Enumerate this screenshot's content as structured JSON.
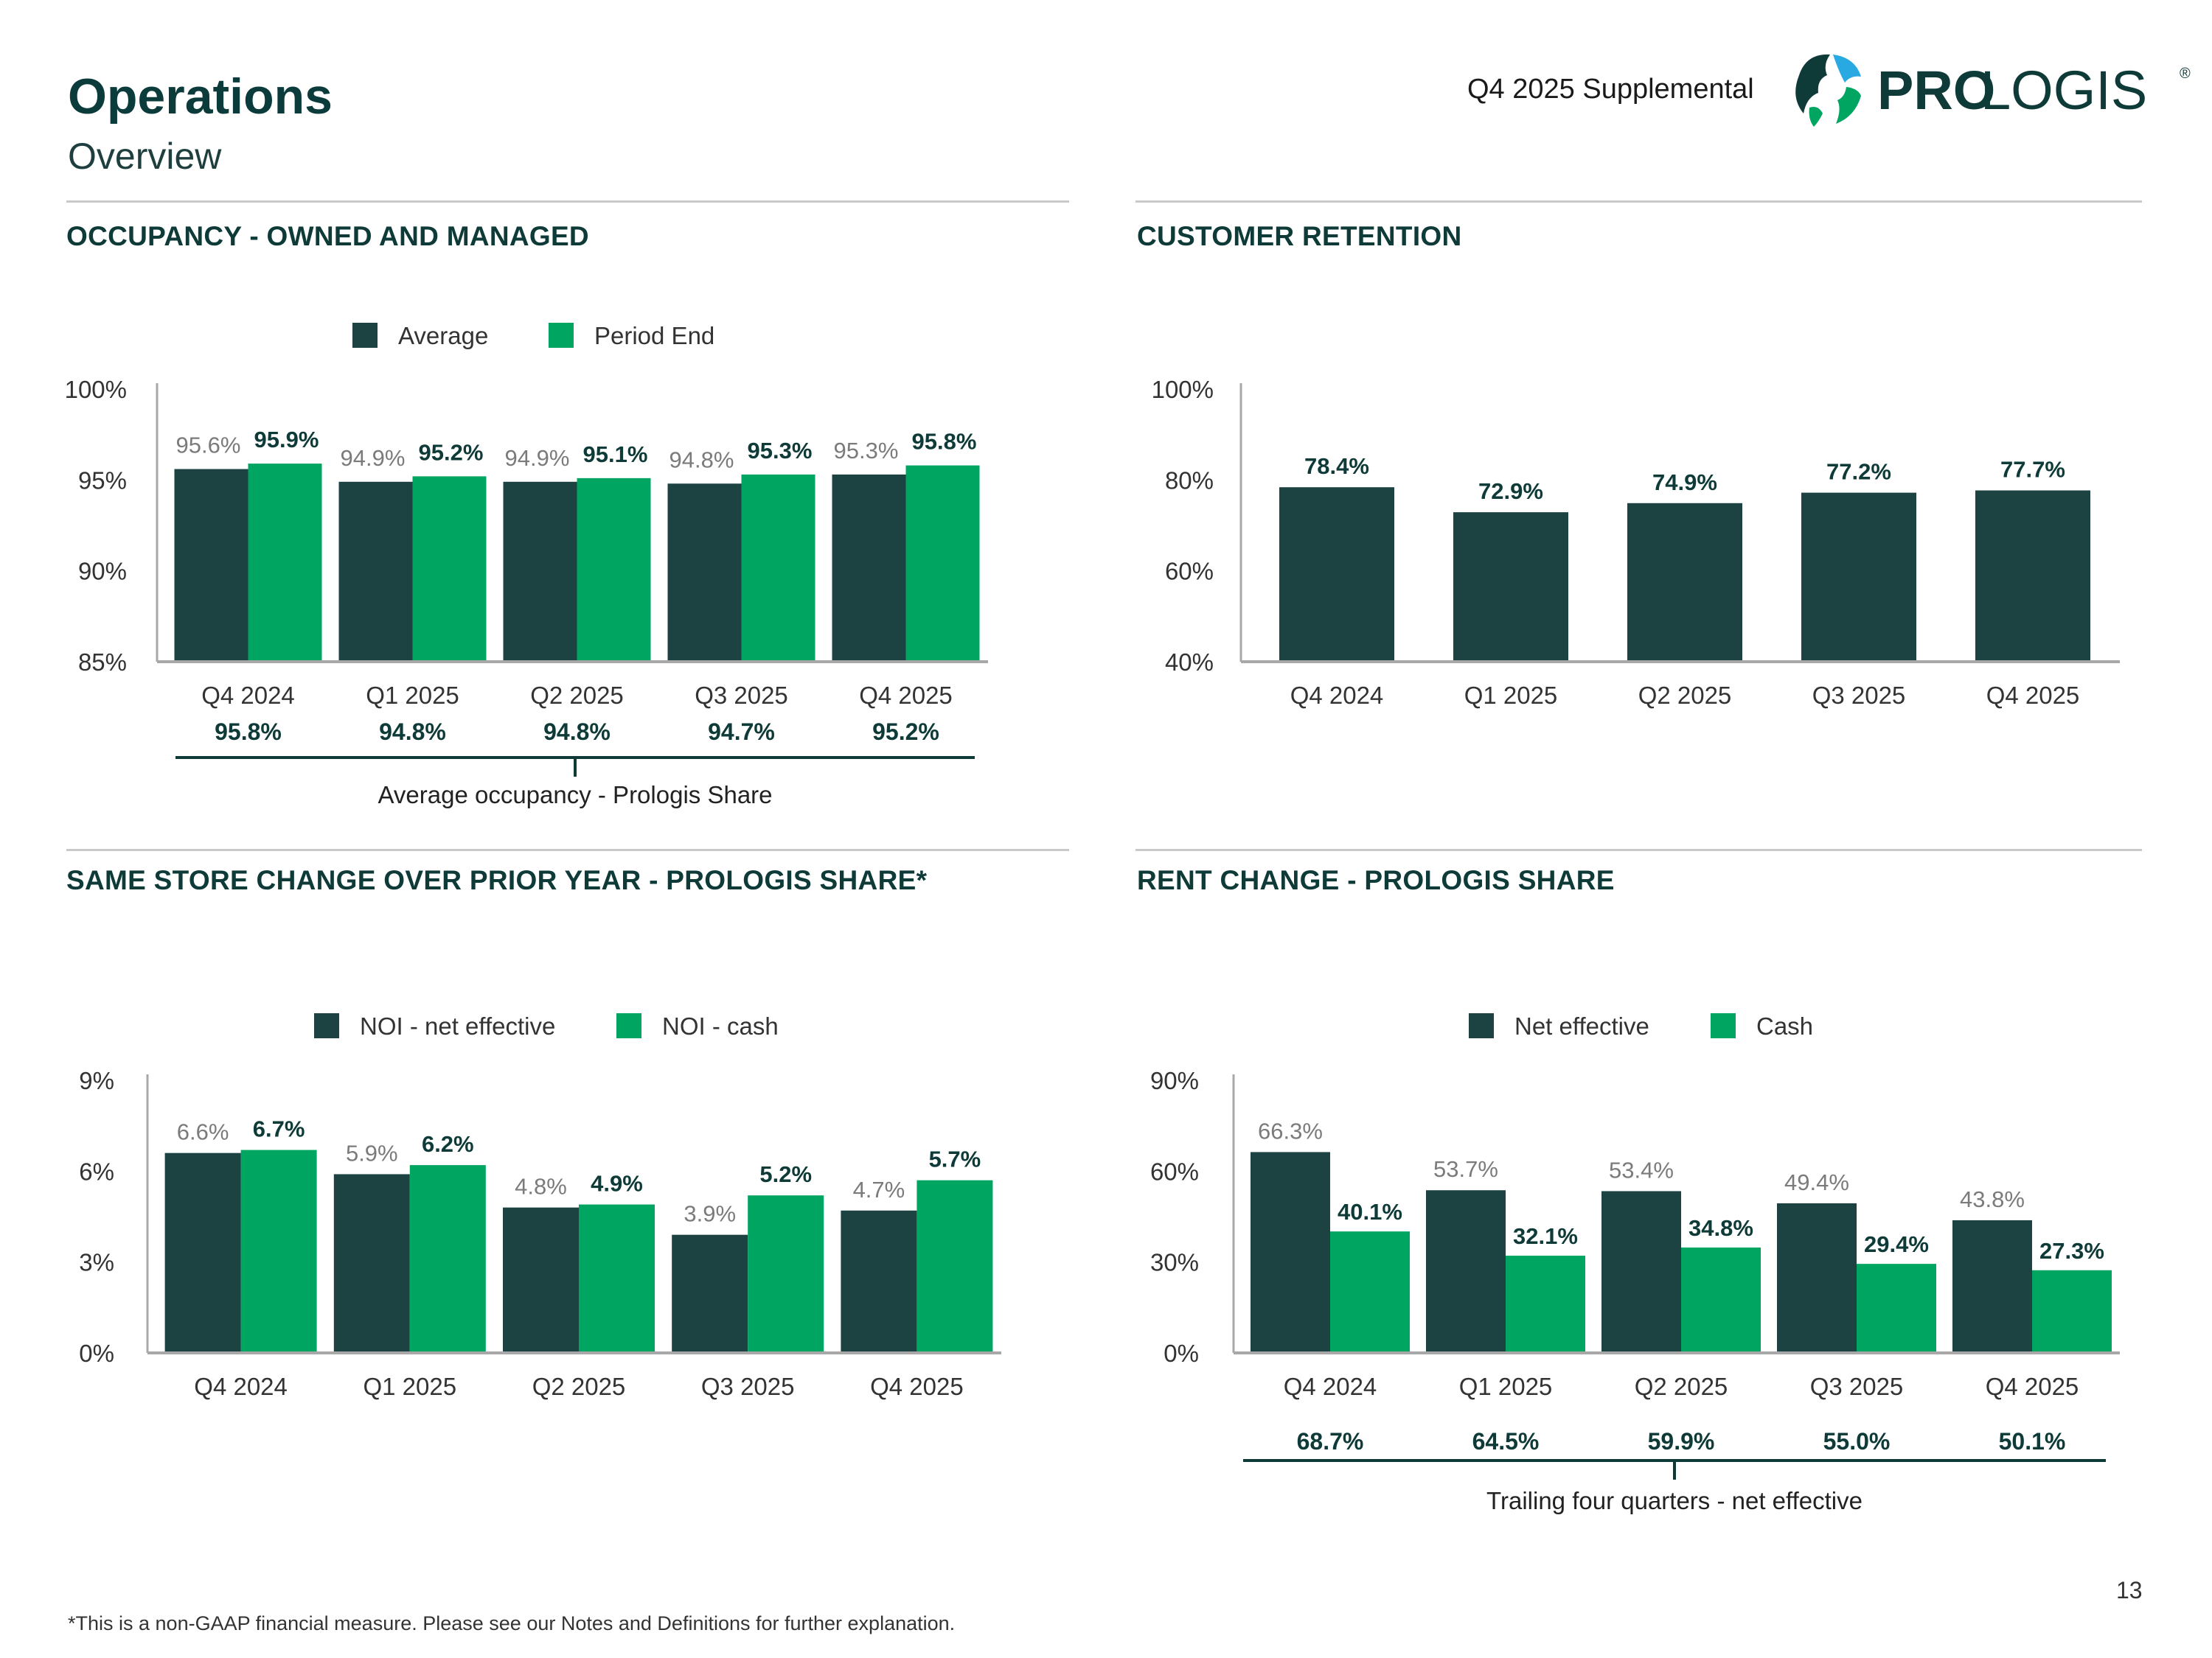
{
  "header": {
    "title": "Operations",
    "subtitle": "Overview",
    "supplemental": "Q4 2025 Supplemental",
    "logo_text_bold": "PRO",
    "logo_text_light": "LOGIS",
    "logo_mark": "®"
  },
  "colors": {
    "dark": "#1c4242",
    "green": "#00a562",
    "navy_text": "#0e3a38",
    "grey_label": "#7b7b7b",
    "axis": "#a8a8a8"
  },
  "footer": {
    "footnote": "*This is a non-GAAP financial measure. Please see our Notes and Definitions for further explanation.",
    "page_number": "13"
  },
  "chart_data": [
    {
      "id": "occupancy",
      "type": "bar",
      "title": "OCCUPANCY - OWNED AND MANAGED",
      "categories": [
        "Q4 2024",
        "Q1 2025",
        "Q2 2025",
        "Q3 2025",
        "Q4 2025"
      ],
      "series": [
        {
          "name": "Average",
          "values": [
            95.6,
            94.9,
            94.9,
            94.8,
            95.3
          ],
          "labels": [
            "95.6%",
            "94.9%",
            "94.9%",
            "94.8%",
            "95.3%"
          ]
        },
        {
          "name": "Period End",
          "values": [
            95.9,
            95.2,
            95.1,
            95.3,
            95.8
          ],
          "labels": [
            "95.9%",
            "95.2%",
            "95.1%",
            "95.3%",
            "95.8%"
          ]
        }
      ],
      "ylim": [
        85,
        100
      ],
      "yticks": [
        "100%",
        "95%",
        "90%",
        "85%"
      ],
      "ytick_values": [
        100,
        95,
        90,
        85
      ],
      "summary_values": [
        "95.8%",
        "94.8%",
        "94.8%",
        "94.7%",
        "95.2%"
      ],
      "summary_label": "Average occupancy - Prologis Share"
    },
    {
      "id": "retention",
      "type": "bar",
      "title": "CUSTOMER RETENTION",
      "categories": [
        "Q4 2024",
        "Q1 2025",
        "Q2 2025",
        "Q3 2025",
        "Q4 2025"
      ],
      "series": [
        {
          "name": "Retention",
          "values": [
            78.4,
            72.9,
            74.9,
            77.2,
            77.7
          ],
          "labels": [
            "78.4%",
            "72.9%",
            "74.9%",
            "77.2%",
            "77.7%"
          ]
        }
      ],
      "ylim": [
        40,
        100
      ],
      "yticks": [
        "100%",
        "80%",
        "60%",
        "40%"
      ],
      "ytick_values": [
        100,
        80,
        60,
        40
      ]
    },
    {
      "id": "samestore",
      "type": "bar",
      "title": "SAME STORE CHANGE OVER PRIOR YEAR - PROLOGIS SHARE*",
      "categories": [
        "Q4 2024",
        "Q1 2025",
        "Q2 2025",
        "Q3 2025",
        "Q4 2025"
      ],
      "series": [
        {
          "name": "NOI - net effective",
          "values": [
            6.6,
            5.9,
            4.8,
            3.9,
            4.7
          ],
          "labels": [
            "6.6%",
            "5.9%",
            "4.8%",
            "3.9%",
            "4.7%"
          ]
        },
        {
          "name": "NOI - cash",
          "values": [
            6.7,
            6.2,
            4.9,
            5.2,
            5.7
          ],
          "labels": [
            "6.7%",
            "6.2%",
            "4.9%",
            "5.2%",
            "5.7%"
          ]
        }
      ],
      "ylim": [
        0,
        9
      ],
      "yticks": [
        "9%",
        "6%",
        "3%",
        "0%"
      ],
      "ytick_values": [
        9,
        6,
        3,
        0
      ]
    },
    {
      "id": "rentchange",
      "type": "bar",
      "title": "RENT CHANGE - PROLOGIS SHARE",
      "categories": [
        "Q4 2024",
        "Q1 2025",
        "Q2 2025",
        "Q3 2025",
        "Q4 2025"
      ],
      "series": [
        {
          "name": "Net effective",
          "values": [
            66.3,
            53.7,
            53.4,
            49.4,
            43.8
          ],
          "labels": [
            "66.3%",
            "53.7%",
            "53.4%",
            "49.4%",
            "43.8%"
          ]
        },
        {
          "name": "Cash",
          "values": [
            40.1,
            32.1,
            34.8,
            29.4,
            27.3
          ],
          "labels": [
            "40.1%",
            "32.1%",
            "34.8%",
            "29.4%",
            "27.3%"
          ]
        }
      ],
      "ylim": [
        0,
        90
      ],
      "yticks": [
        "90%",
        "60%",
        "30%",
        "0%"
      ],
      "ytick_values": [
        90,
        60,
        30,
        0
      ],
      "summary_values": [
        "68.7%",
        "64.5%",
        "59.9%",
        "55.0%",
        "50.1%"
      ],
      "summary_label": "Trailing four quarters - net effective"
    }
  ]
}
